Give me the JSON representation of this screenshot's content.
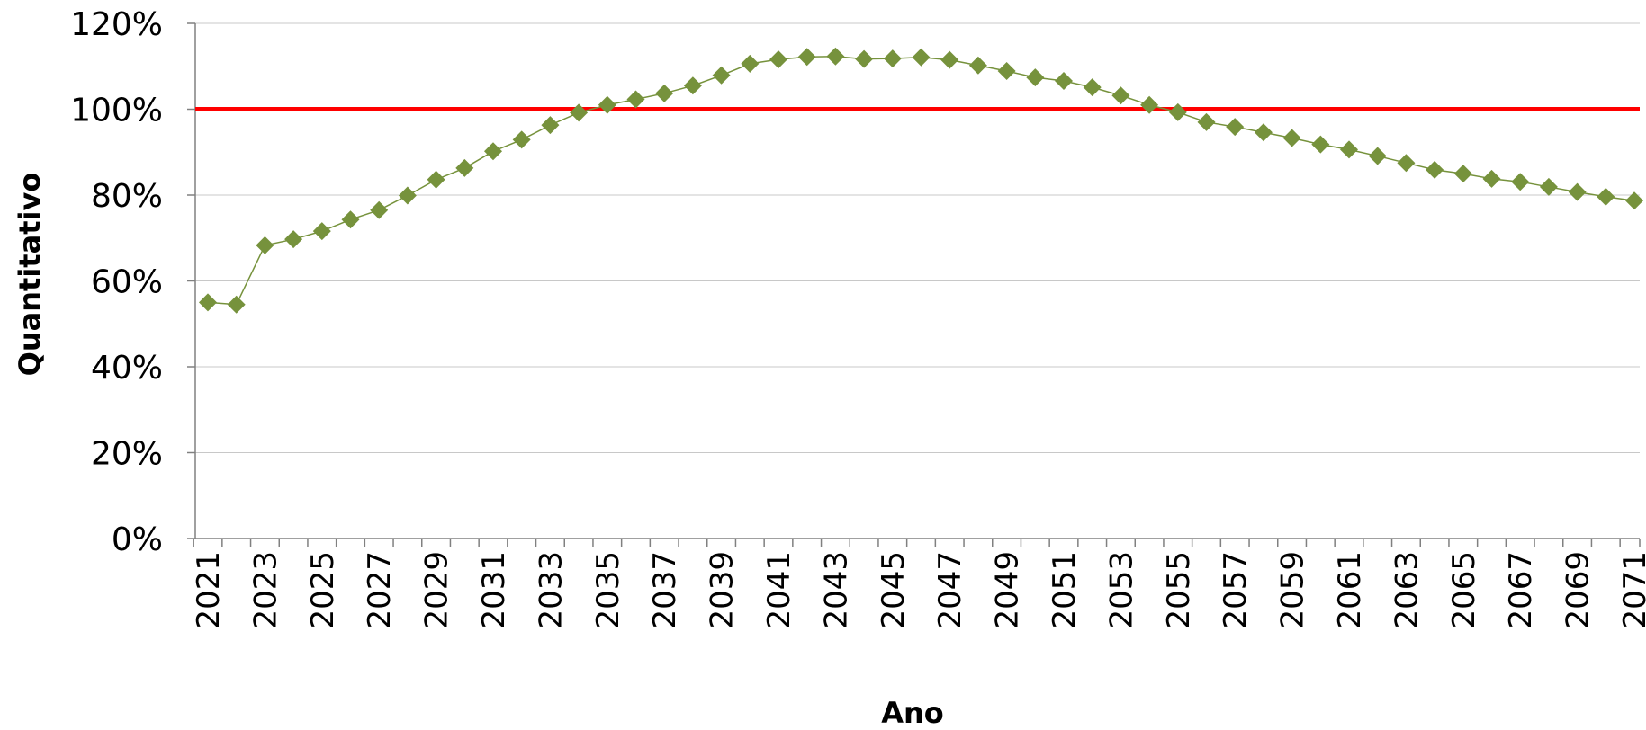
{
  "chart_data": {
    "type": "line",
    "title": "",
    "xlabel": "Ano",
    "ylabel": "Quantitativo",
    "ylim": [
      0,
      120
    ],
    "y_unit": "%",
    "y_ticks": [
      0,
      20,
      40,
      60,
      80,
      100,
      120
    ],
    "y_tick_labels": [
      "0%",
      "20%",
      "40%",
      "60%",
      "80%",
      "100%",
      "120%"
    ],
    "x_tick_labels": [
      "2021",
      "2023",
      "2025",
      "2027",
      "2029",
      "2031",
      "2033",
      "2035",
      "2037",
      "2039",
      "2041",
      "2043",
      "2045",
      "2047",
      "2049",
      "2051",
      "2053",
      "2055",
      "2057",
      "2059",
      "2061",
      "2063",
      "2065",
      "2067",
      "2069",
      "2071"
    ],
    "grid": true,
    "legend": "none",
    "reference_line": {
      "y": 100,
      "color": "#ff0000"
    },
    "series": [
      {
        "color": "#76923c",
        "marker": "diamond",
        "x": [
          2021,
          2022,
          2023,
          2024,
          2025,
          2026,
          2027,
          2028,
          2029,
          2030,
          2031,
          2032,
          2033,
          2034,
          2035,
          2036,
          2037,
          2038,
          2039,
          2040,
          2041,
          2042,
          2043,
          2044,
          2045,
          2046,
          2047,
          2048,
          2049,
          2050,
          2051,
          2052,
          2053,
          2054,
          2055,
          2056,
          2057,
          2058,
          2059,
          2060,
          2061,
          2062,
          2063,
          2064,
          2065,
          2066,
          2067,
          2068,
          2069,
          2070,
          2071
        ],
        "values": [
          55,
          54.5,
          68.3,
          69.7,
          71.6,
          74.3,
          76.5,
          79.9,
          83.6,
          86.3,
          90.2,
          92.9,
          96.3,
          99.2,
          101.0,
          102.3,
          103.7,
          105.5,
          107.9,
          110.6,
          111.6,
          112.2,
          112.3,
          111.7,
          111.8,
          112.1,
          111.5,
          110.2,
          108.9,
          107.4,
          106.6,
          105.1,
          103.2,
          101.0,
          99.3,
          97.0,
          95.9,
          94.6,
          93.3,
          91.8,
          90.6,
          89.1,
          87.5,
          85.9,
          85.0,
          83.8,
          83.1,
          81.9,
          80.7,
          79.6,
          78.7
        ]
      }
    ]
  }
}
